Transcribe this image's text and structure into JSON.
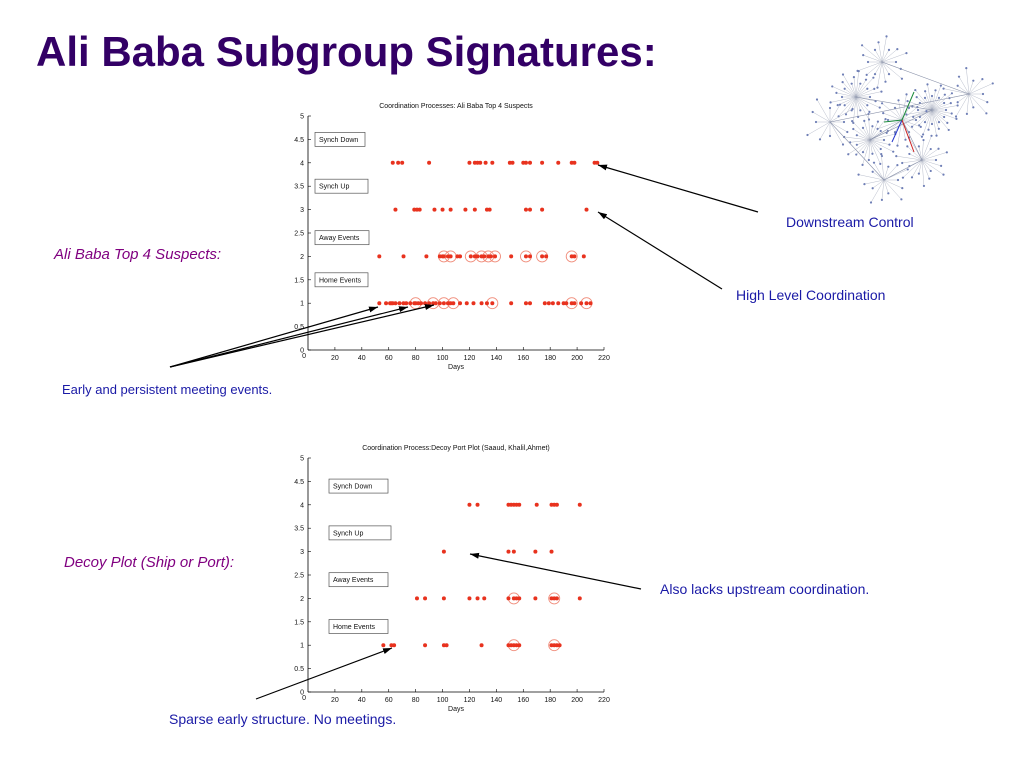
{
  "slide": {
    "title": "Ali Baba Subgroup Signatures:"
  },
  "labels": {
    "top4": "Ali Baba Top 4 Suspects:",
    "decoy": "Decoy Plot (Ship or Port):"
  },
  "annotations": {
    "downstream": "Downstream Control",
    "high_level": "High Level Coordination",
    "early": "Early and persistent meeting events.",
    "lacks": "Also lacks upstream coordination.",
    "sparse": "Sparse early structure. No meetings."
  },
  "colors": {
    "title": "#330066",
    "italic": "#800080",
    "annotation": "#1a1aa6",
    "dot": "#e8321e",
    "ring": "#f08c7a"
  },
  "chart_data": [
    {
      "type": "scatter",
      "title": "Coordination Processes: Ali Baba Top 4 Suspects",
      "xlabel": "Days",
      "ylabel": "",
      "xlim": [
        0,
        220
      ],
      "ylim": [
        0,
        5
      ],
      "xticks": [
        "20",
        "40",
        "60",
        "80",
        "100",
        "120",
        "140",
        "160",
        "180",
        "200",
        "220"
      ],
      "yticks": [
        "0",
        "0.5",
        "1",
        "1.5",
        "2",
        "2.5",
        "3",
        "3.5",
        "4",
        "4.5",
        "5"
      ],
      "legend_boxes": [
        {
          "label": "Synch Down",
          "y": 4.5
        },
        {
          "label": "Synch Up",
          "y": 3.5
        },
        {
          "label": "Away Events",
          "y": 2.4
        },
        {
          "label": "Home Events",
          "y": 1.5
        }
      ],
      "series": [
        {
          "y": 4,
          "x": [
            63,
            67,
            70,
            90,
            120,
            124,
            126,
            128,
            132,
            137,
            150,
            152,
            160,
            162,
            165,
            174,
            186,
            196,
            198,
            213,
            215
          ]
        },
        {
          "y": 3,
          "x": [
            65,
            79,
            81,
            83,
            94,
            100,
            106,
            117,
            124,
            133,
            135,
            162,
            165,
            174,
            207
          ]
        },
        {
          "y": 2,
          "x": [
            53,
            71,
            88,
            98,
            100,
            101,
            104,
            106,
            111,
            113,
            121,
            124,
            126,
            129,
            131,
            134,
            136,
            139,
            151,
            162,
            165,
            174,
            177,
            196,
            198,
            205
          ]
        },
        {
          "y": 1,
          "x": [
            53,
            58,
            61,
            62,
            63,
            65,
            68,
            71,
            73,
            76,
            79,
            80,
            82,
            84,
            87,
            90,
            93,
            95,
            98,
            101,
            104,
            106,
            108,
            113,
            118,
            123,
            129,
            133,
            137,
            151,
            162,
            165,
            176,
            179,
            182,
            186,
            190,
            192,
            196,
            198,
            203,
            207,
            210
          ]
        }
      ],
      "circled": [
        {
          "y": 2,
          "x": [
            101,
            106,
            121,
            129,
            134,
            139,
            162,
            174,
            196
          ]
        },
        {
          "y": 1,
          "x": [
            80,
            93,
            101,
            108,
            137,
            196,
            207
          ]
        }
      ]
    },
    {
      "type": "scatter",
      "title": "Coordination Process:Decoy Port Plot (Saaud, Khalil,Ahmet)",
      "xlabel": "Days",
      "ylabel": "",
      "xlim": [
        0,
        220
      ],
      "ylim": [
        0,
        5
      ],
      "xticks": [
        "20",
        "40",
        "60",
        "80",
        "100",
        "120",
        "140",
        "160",
        "180",
        "200",
        "220"
      ],
      "yticks": [
        "0",
        "0.5",
        "1",
        "1.5",
        "2",
        "2.5",
        "3",
        "3.5",
        "4",
        "4.5",
        "5"
      ],
      "legend_boxes": [
        {
          "label": "Synch Down",
          "y": 4.4
        },
        {
          "label": "Synch Up",
          "y": 3.4
        },
        {
          "label": "Away Events",
          "y": 2.4
        },
        {
          "label": "Home Events",
          "y": 1.4
        }
      ],
      "series": [
        {
          "y": 4,
          "x": [
            120,
            126,
            149,
            151,
            153,
            155,
            157,
            170,
            181,
            183,
            185,
            202
          ]
        },
        {
          "y": 3,
          "x": [
            101,
            149,
            153,
            169,
            181
          ]
        },
        {
          "y": 2,
          "x": [
            81,
            87,
            101,
            120,
            126,
            131,
            149,
            153,
            155,
            157,
            169,
            181,
            183,
            185,
            202
          ]
        },
        {
          "y": 1,
          "x": [
            56,
            62,
            64,
            87,
            101,
            103,
            129,
            149,
            151,
            153,
            155,
            157,
            181,
            183,
            185,
            187
          ]
        }
      ],
      "circled": [
        {
          "y": 2,
          "x": [
            153,
            183
          ]
        },
        {
          "y": 1,
          "x": [
            153,
            183
          ]
        }
      ]
    }
  ]
}
